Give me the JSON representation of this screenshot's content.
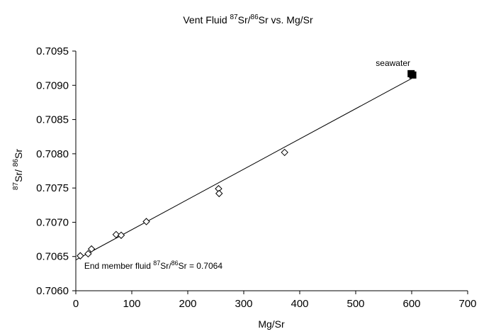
{
  "chart_data": {
    "type": "scatter",
    "title": {
      "prefix": "Vent Fluid ",
      "sup1": "87",
      "mid": "Sr/",
      "sup2": "86",
      "suffix": "Sr vs. Mg/Sr"
    },
    "xlabel": "Mg/Sr",
    "ylabel": {
      "sup1": "87",
      "mid": "Sr/ ",
      "sup2": "86",
      "suffix": "Sr"
    },
    "xlim": [
      0,
      700
    ],
    "ylim": [
      0.706,
      0.7095
    ],
    "x_ticks": [
      0,
      100,
      200,
      300,
      400,
      500,
      600,
      700
    ],
    "x_tick_labels": [
      "0",
      "100",
      "200",
      "300",
      "400",
      "500",
      "600",
      "700"
    ],
    "y_ticks": [
      0.706,
      0.7065,
      0.707,
      0.7075,
      0.708,
      0.7085,
      0.709,
      0.7095
    ],
    "y_tick_labels": [
      "0.7060",
      "0.7065",
      "0.7070",
      "0.7075",
      "0.7080",
      "0.7085",
      "0.7090",
      "0.7095"
    ],
    "grid": false,
    "series": [
      {
        "marker": "open-diamond",
        "points": [
          {
            "x": 8,
            "y": 0.70651
          },
          {
            "x": 22,
            "y": 0.70654
          },
          {
            "x": 28,
            "y": 0.70661
          },
          {
            "x": 72,
            "y": 0.70682
          },
          {
            "x": 81,
            "y": 0.70681
          },
          {
            "x": 126,
            "y": 0.70701
          },
          {
            "x": 255,
            "y": 0.70749
          },
          {
            "x": 256,
            "y": 0.70742
          },
          {
            "x": 373,
            "y": 0.70802
          }
        ]
      },
      {
        "marker": "filled-square",
        "points": [
          {
            "x": 599,
            "y": 0.70917
          },
          {
            "x": 602,
            "y": 0.70915
          }
        ]
      }
    ],
    "fit_line": {
      "x": [
        0,
        600
      ],
      "y": [
        0.70645,
        0.7091
      ]
    },
    "annotations": {
      "seawater": {
        "text": "seawater",
        "x": 600,
        "y": 0.70917
      },
      "end_member": {
        "prefix": "End member fluid ",
        "sup1": "87",
        "mid": "Sr/",
        "sup2": "86",
        "suffix": "Sr = 0.7064",
        "x": 15,
        "y": 0.70632
      }
    }
  }
}
